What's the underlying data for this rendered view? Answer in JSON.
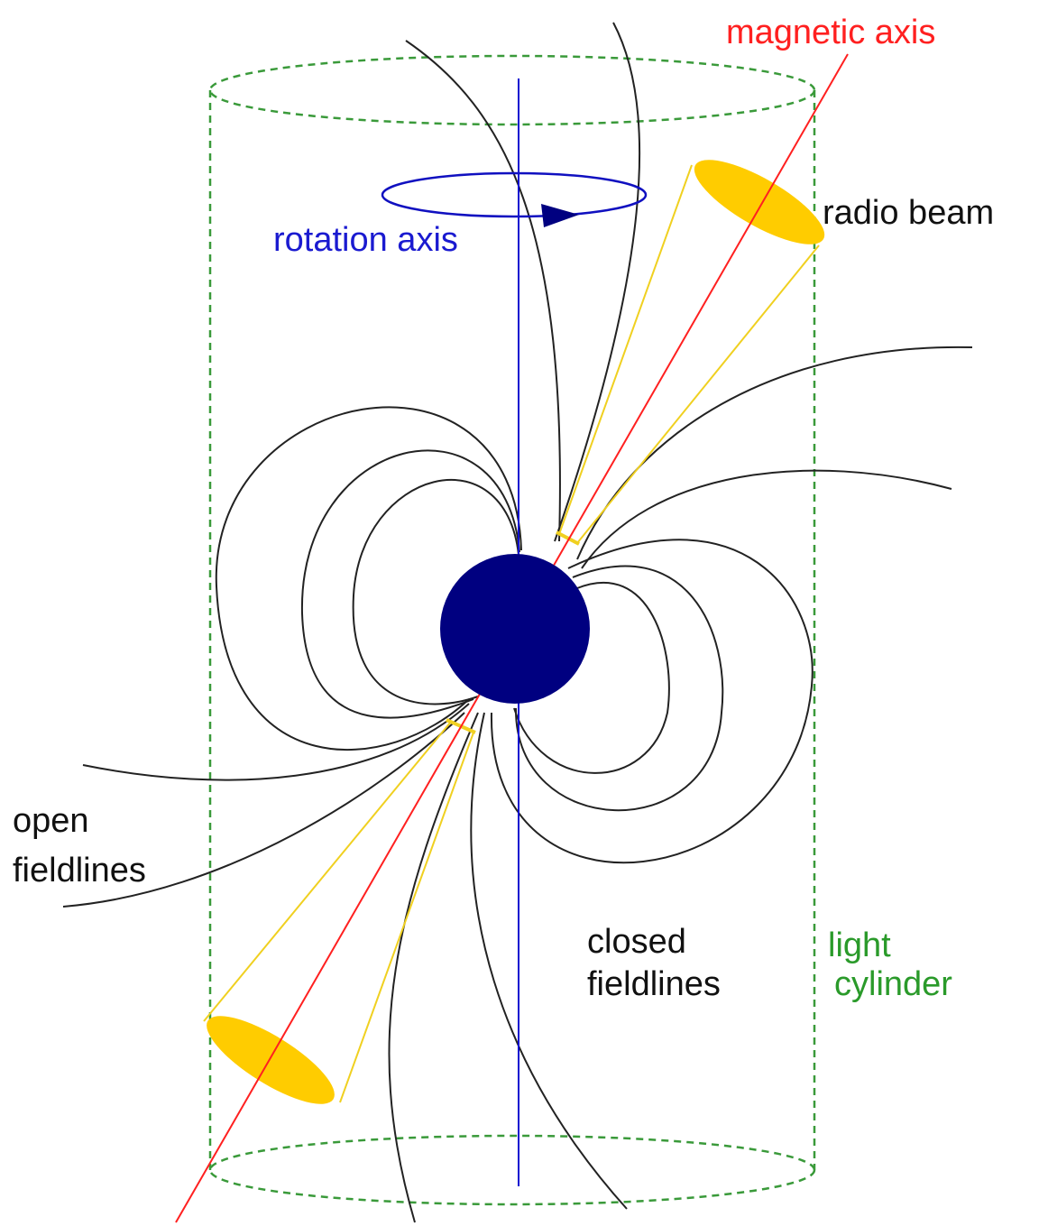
{
  "labels": {
    "magnetic_axis": "magnetic axis",
    "rotation_axis": "rotation axis",
    "radio_beam": "radio beam",
    "open_fieldlines": [
      "open",
      "fieldlines"
    ],
    "closed_fieldlines": [
      "closed",
      "fieldlines"
    ],
    "light_cylinder": [
      "light",
      "cylinder"
    ]
  }
}
